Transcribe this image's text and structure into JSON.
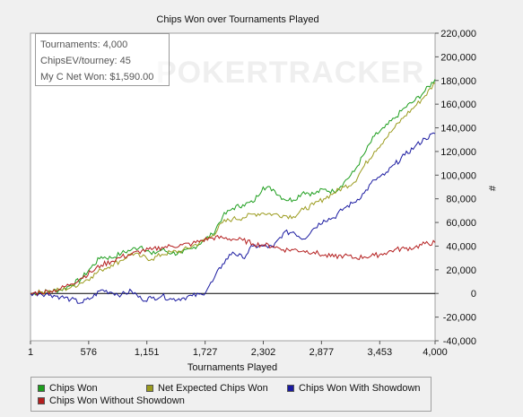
{
  "chart_data": {
    "type": "line",
    "title": "Chips Won over Tournaments Played",
    "xlabel": "Tournaments Played",
    "ylabel": "#",
    "xlim": [
      1,
      4000
    ],
    "ylim": [
      -40000,
      220000
    ],
    "x_ticks": [
      "1",
      "576",
      "1,151",
      "1,727",
      "2,302",
      "2,877",
      "3,453",
      "4,000"
    ],
    "x_tick_values": [
      1,
      576,
      1151,
      1727,
      2302,
      2877,
      3453,
      4000
    ],
    "y_ticks": [
      "-40,000",
      "-20,000",
      "0",
      "20,000",
      "40,000",
      "60,000",
      "80,000",
      "100,000",
      "120,000",
      "140,000",
      "160,000",
      "180,000",
      "200,000",
      "220,000"
    ],
    "y_tick_values": [
      -40000,
      -20000,
      0,
      20000,
      40000,
      60000,
      80000,
      100000,
      120000,
      140000,
      160000,
      180000,
      200000,
      220000
    ],
    "grid": false,
    "legend_position": "bottom",
    "series": [
      {
        "name": "Chips Won",
        "color": "#1e9e1e",
        "x": [
          1,
          100,
          200,
          300,
          400,
          500,
          600,
          700,
          800,
          900,
          1000,
          1100,
          1200,
          1300,
          1400,
          1500,
          1600,
          1700,
          1800,
          1900,
          2000,
          2100,
          2200,
          2300,
          2400,
          2500,
          2600,
          2700,
          2800,
          2900,
          3000,
          3100,
          3200,
          3300,
          3400,
          3500,
          3600,
          3700,
          3800,
          3900,
          4000
        ],
        "values": [
          0,
          1000,
          2000,
          3000,
          7000,
          12000,
          22000,
          31000,
          30000,
          34000,
          37000,
          40000,
          33000,
          37000,
          34000,
          34000,
          38000,
          44000,
          50000,
          65000,
          72000,
          75000,
          77000,
          90000,
          88000,
          80000,
          79000,
          86000,
          84000,
          88000,
          86000,
          94000,
          103000,
          118000,
          133000,
          140000,
          148000,
          157000,
          163000,
          171000,
          181000
        ]
      },
      {
        "name": "Net Expected Chips Won",
        "color": "#9b9b1e",
        "x": [
          1,
          100,
          200,
          300,
          400,
          500,
          600,
          700,
          800,
          900,
          1000,
          1100,
          1200,
          1300,
          1400,
          1500,
          1600,
          1700,
          1800,
          1900,
          2000,
          2100,
          2200,
          2300,
          2400,
          2500,
          2600,
          2700,
          2800,
          2900,
          3000,
          3100,
          3200,
          3300,
          3400,
          3500,
          3600,
          3700,
          3800,
          3900,
          4000
        ],
        "values": [
          0,
          1000,
          2000,
          3000,
          5000,
          9000,
          14000,
          20000,
          24000,
          28000,
          34000,
          31000,
          29000,
          33000,
          35000,
          36000,
          40000,
          44000,
          49000,
          60000,
          63000,
          64000,
          67000,
          68000,
          67000,
          66000,
          65000,
          71000,
          75000,
          80000,
          85000,
          90000,
          94000,
          108000,
          120000,
          130000,
          140000,
          150000,
          158000,
          167000,
          178000
        ]
      },
      {
        "name": "Chips Won With Showdown",
        "color": "#1a1aa0",
        "x": [
          1,
          100,
          200,
          300,
          400,
          500,
          600,
          700,
          800,
          900,
          1000,
          1100,
          1200,
          1300,
          1400,
          1500,
          1600,
          1700,
          1800,
          1900,
          2000,
          2100,
          2200,
          2300,
          2400,
          2500,
          2600,
          2700,
          2800,
          2900,
          3000,
          3100,
          3200,
          3300,
          3400,
          3500,
          3600,
          3700,
          3800,
          3900,
          4000
        ],
        "values": [
          0,
          0,
          -1000,
          -3000,
          -5000,
          -8000,
          -4000,
          3000,
          1000,
          -1000,
          2000,
          -5000,
          -4000,
          -2000,
          -5000,
          -4000,
          -2000,
          -1000,
          10000,
          25000,
          35000,
          30000,
          40000,
          40000,
          39000,
          51000,
          52000,
          46000,
          55000,
          62000,
          64000,
          72000,
          77000,
          85000,
          96000,
          100000,
          109000,
          117000,
          124000,
          131000,
          135000
        ]
      },
      {
        "name": "Chips Won Without Showdown",
        "color": "#b41e1e",
        "x": [
          1,
          100,
          200,
          300,
          400,
          500,
          600,
          700,
          800,
          900,
          1000,
          1100,
          1200,
          1300,
          1400,
          1500,
          1600,
          1700,
          1800,
          1900,
          2000,
          2100,
          2200,
          2300,
          2400,
          2500,
          2600,
          2700,
          2800,
          2900,
          3000,
          3100,
          3200,
          3300,
          3400,
          3500,
          3600,
          3700,
          3800,
          3900,
          4000
        ],
        "values": [
          0,
          1000,
          2000,
          4000,
          8000,
          13000,
          18000,
          24000,
          27000,
          31000,
          33000,
          36000,
          37000,
          39000,
          40000,
          41000,
          42000,
          45000,
          47000,
          47000,
          46000,
          45000,
          42000,
          41000,
          40000,
          37000,
          37000,
          36000,
          35000,
          32000,
          31000,
          32000,
          30000,
          31000,
          32000,
          34000,
          37000,
          38000,
          39000,
          42000,
          43000
        ]
      }
    ]
  },
  "info_box": {
    "tournaments": "Tournaments: 4,000",
    "chipsev": "ChipsEV/tourney: 45",
    "net_won": "My C Net Won: $1,590.00"
  },
  "watermark": "POKERTRACKER",
  "legend": {
    "items": [
      "Chips Won",
      "Net Expected Chips Won",
      "Chips Won With Showdown",
      "Chips Won Without Showdown"
    ]
  }
}
